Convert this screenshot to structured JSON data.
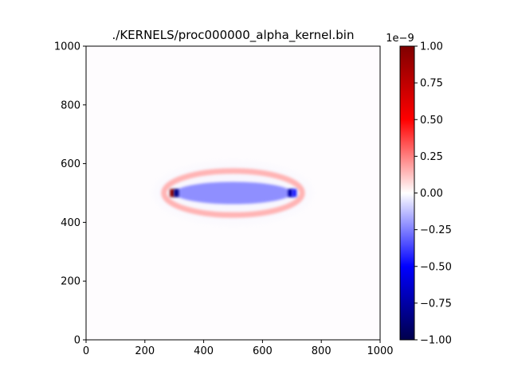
{
  "chart_data": {
    "type": "heatmap",
    "title": "./KERNELS/proc000000_alpha_kernel.bin",
    "xlabel": "",
    "ylabel": "",
    "xlim": [
      0,
      1000
    ],
    "ylim": [
      0,
      1000
    ],
    "x_ticks": [
      0,
      200,
      400,
      600,
      800,
      1000
    ],
    "y_ticks": [
      0,
      200,
      400,
      600,
      800,
      1000
    ],
    "x_tick_labels": [
      "0",
      "200",
      "400",
      "600",
      "800",
      "1000"
    ],
    "y_tick_labels": [
      "0",
      "200",
      "400",
      "600",
      "800",
      "1000"
    ],
    "grid": false,
    "colormap": "seismic",
    "colormap_stops": [
      "#00004c",
      "#0000ff",
      "#ffffff",
      "#ff0000",
      "#7f0000"
    ],
    "colorbar": {
      "range": [
        -1.0,
        1.0
      ],
      "ticks": [
        -1.0,
        -0.75,
        -0.5,
        -0.25,
        0.0,
        0.25,
        0.5,
        0.75,
        1.0
      ],
      "tick_labels": [
        "−1.00",
        "−0.75",
        "−0.50",
        "−0.25",
        "0.00",
        "0.25",
        "0.50",
        "0.75",
        "1.00"
      ],
      "offset_label": "1e−9"
    },
    "features": [
      {
        "kind": "ellipse-fill",
        "center": [
          500,
          500
        ],
        "radii": [
          200,
          38
        ],
        "value": -0.22
      },
      {
        "kind": "ellipse-ring",
        "center": [
          500,
          500
        ],
        "radii": [
          235,
          75
        ],
        "value": 0.15
      },
      {
        "kind": "point",
        "center": [
          293,
          500
        ],
        "value": 0.95
      },
      {
        "kind": "point",
        "center": [
          307,
          500
        ],
        "value": -0.85
      },
      {
        "kind": "point",
        "center": [
          695,
          500
        ],
        "value": -0.75
      },
      {
        "kind": "point",
        "center": [
          708,
          500
        ],
        "value": -0.45
      },
      {
        "kind": "halo",
        "center": [
          500,
          500
        ],
        "radii": [
          265,
          100
        ],
        "value": -0.02
      }
    ]
  }
}
